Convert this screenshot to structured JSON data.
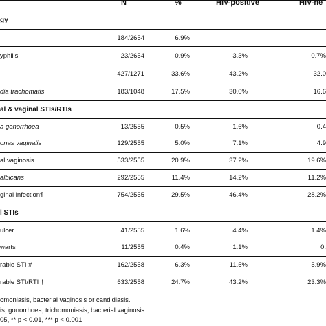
{
  "header": {
    "n": "N",
    "pct": "%",
    "hiv_pos": "HIV-positive",
    "hiv_neg": "HIV-ne"
  },
  "sections": [
    {
      "label": "gy"
    },
    {
      "label": "al & vaginal STIs/RTIs"
    },
    {
      "label": "l STIs"
    }
  ],
  "rows": [
    {
      "label": "",
      "label_italic": "",
      "n": "184/2654",
      "pct": "6.9%",
      "pos": "",
      "neg": ""
    },
    {
      "label": "yphilis",
      "label_italic": "",
      "n": "23/2654",
      "pct": "0.9%",
      "pos": "3.3%",
      "neg": "0.7%"
    },
    {
      "label": "",
      "label_italic": "",
      "n": "427/1271",
      "pct": "33.6%",
      "pos": "43.2%",
      "neg": "32.0"
    },
    {
      "label": "",
      "label_italic": "dia trachomatis",
      "n": "183/1048",
      "pct": "17.5%",
      "pos": "30.0%",
      "neg": "16.6"
    },
    {
      "label": "",
      "label_italic": "a gonorrhoea",
      "n": "13/2555",
      "pct": "0.5%",
      "pos": "1.6%",
      "neg": "0.4"
    },
    {
      "label": "",
      "label_italic": "onas vaginalis",
      "n": "129/2555",
      "pct": "5.0%",
      "pos": "7.1%",
      "neg": "4.9"
    },
    {
      "label": "al vaginosis",
      "label_italic": "",
      "n": "533/2555",
      "pct": "20.9%",
      "pos": "37.2%",
      "neg": "19.6%"
    },
    {
      "label": "",
      "label_italic": "albicans",
      "n": "292/2555",
      "pct": "11.4%",
      "pos": "14.2%",
      "neg": "11.2%"
    },
    {
      "label": "ginal infection¶",
      "label_italic": "",
      "n": "754/2555",
      "pct": "29.5%",
      "pos": "46.4%",
      "neg": "28.2%"
    },
    {
      "label": "ulcer",
      "label_italic": "",
      "n": "41/2555",
      "pct": "1.6%",
      "pos": "4.4%",
      "neg": "1.4%"
    },
    {
      "label": "warts",
      "label_italic": "",
      "n": "11/2555",
      "pct": "0.4%",
      "pos": "1.1%",
      "neg": "0."
    },
    {
      "label": "rable STI #",
      "label_italic": "",
      "n": "162/2558",
      "pct": "6.3%",
      "pos": "11.5%",
      "neg": "5.9%"
    },
    {
      "label": "rable STI/RTI †",
      "label_italic": "",
      "n": "633/2558",
      "pct": "24.7%",
      "pos": "43.2%",
      "neg": "23.3%"
    }
  ],
  "footnotes": [
    "omoniasis, bacterial vaginosis or candidiasis.",
    "is, gonorrhoea, trichomoniasis, bacterial vaginosis.",
    "05, ** p < 0.01, *** p < 0.001"
  ]
}
